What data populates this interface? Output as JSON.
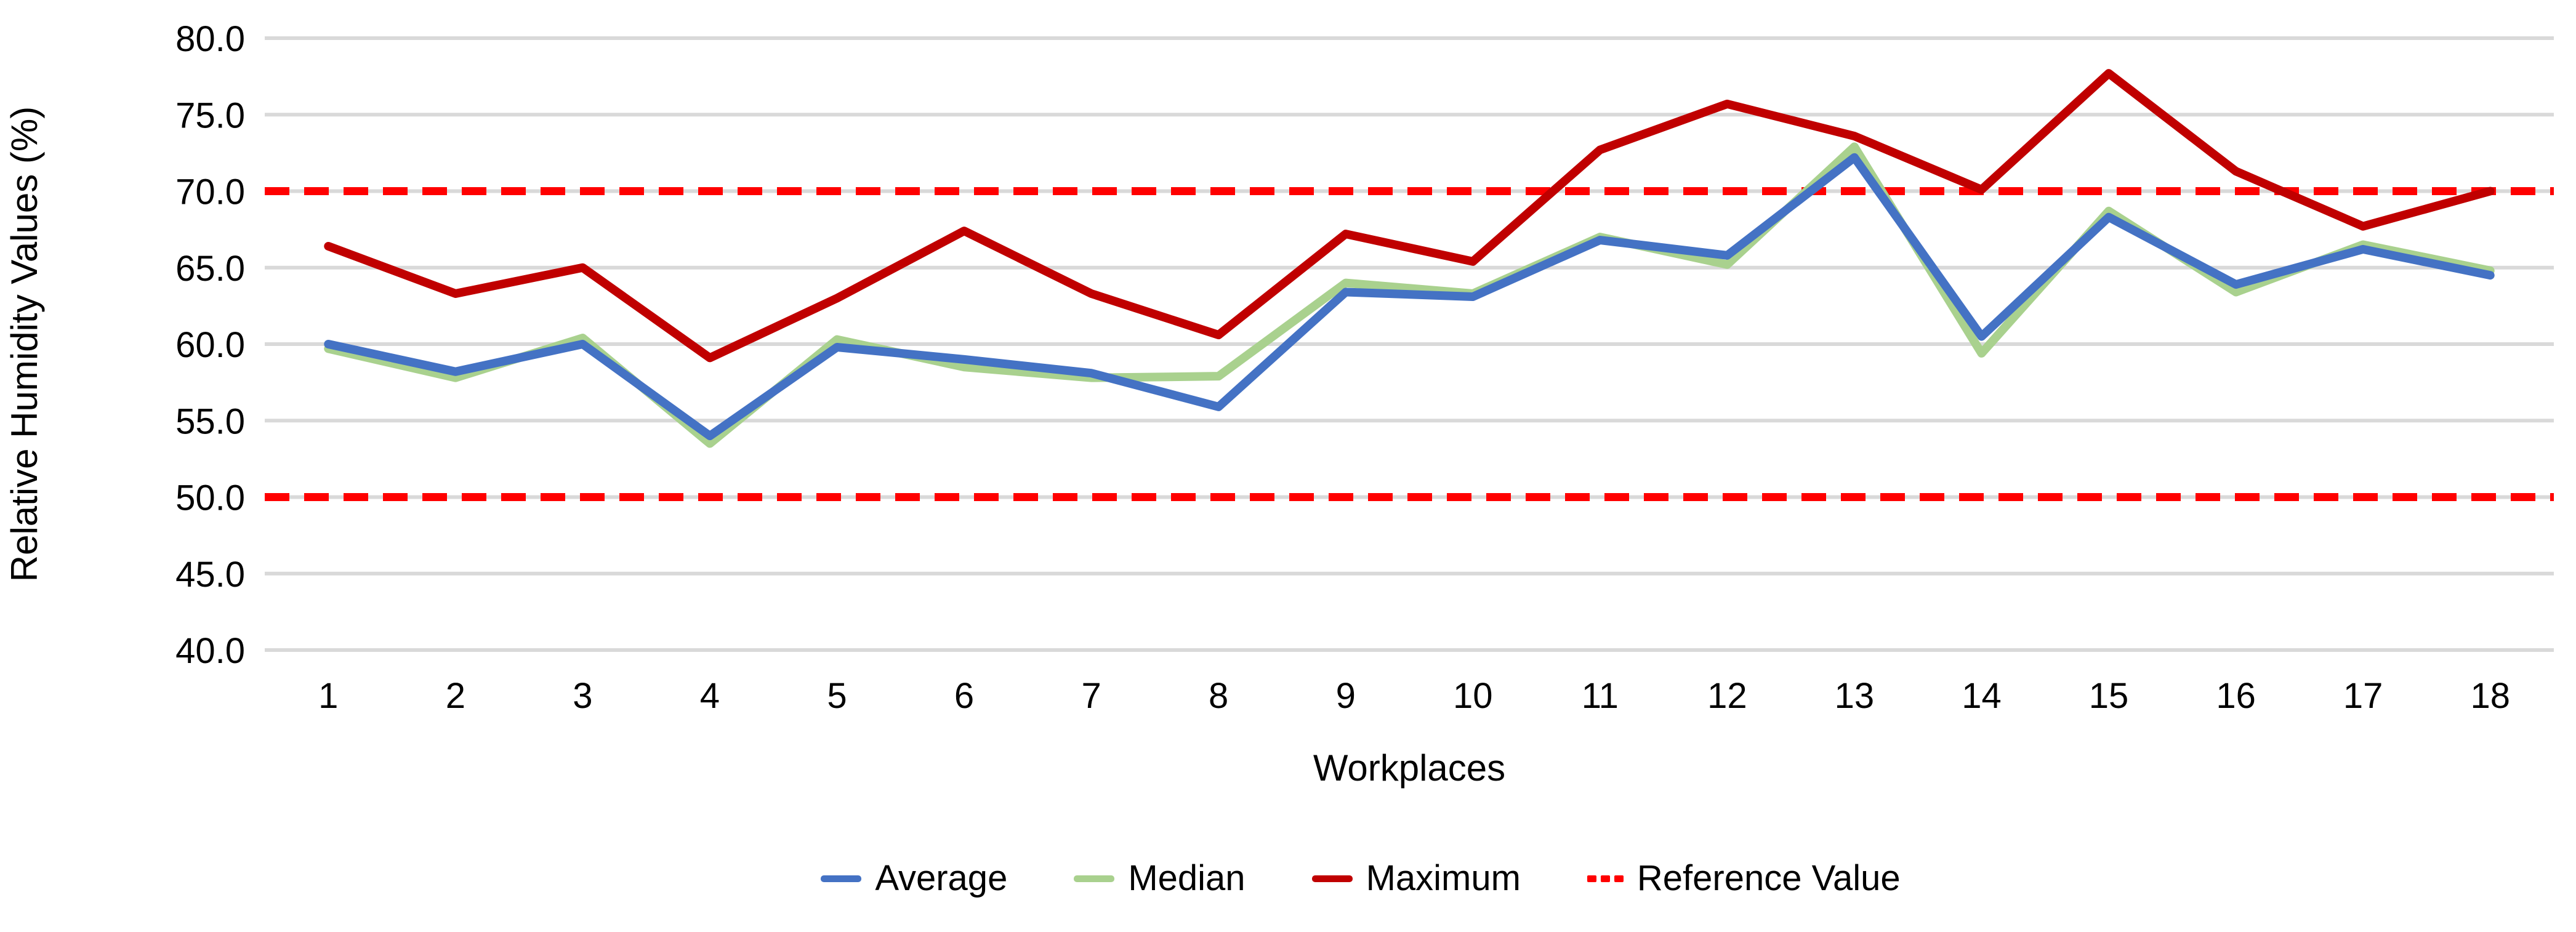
{
  "chart_data": {
    "type": "line",
    "title": "",
    "xlabel": "Workplaces",
    "ylabel": "Relative Humidity Values (%)",
    "ylim": [
      40.0,
      80.0
    ],
    "ytick_step": 5.0,
    "ytick_decimals": 1,
    "grid": {
      "visible": true,
      "color": "#d9d9d9"
    },
    "background": "#ffffff",
    "text_color": "#000000",
    "legend_position": "bottom",
    "categories": [
      "1",
      "2",
      "3",
      "4",
      "5",
      "6",
      "7",
      "8",
      "9",
      "10",
      "11",
      "12",
      "13",
      "14",
      "15",
      "16",
      "17",
      "18"
    ],
    "series": [
      {
        "name": "Average",
        "color": "#4472c4",
        "values": [
          60.0,
          58.2,
          60.0,
          54.0,
          59.8,
          59.0,
          58.1,
          55.9,
          63.4,
          63.1,
          66.8,
          65.8,
          72.2,
          60.5,
          68.3,
          63.9,
          66.2,
          64.5
        ]
      },
      {
        "name": "Median",
        "color": "#a9d18e",
        "values": [
          59.7,
          57.8,
          60.4,
          53.5,
          60.3,
          58.5,
          57.8,
          57.9,
          64.0,
          63.3,
          67.0,
          65.2,
          72.9,
          59.4,
          68.7,
          63.4,
          66.5,
          64.8
        ]
      },
      {
        "name": "Maximum",
        "color": "#c00000",
        "values": [
          66.4,
          63.3,
          65.0,
          59.1,
          63.0,
          67.4,
          63.3,
          60.6,
          67.2,
          65.4,
          72.7,
          75.7,
          73.6,
          70.1,
          77.7,
          71.3,
          67.7,
          70.0
        ]
      }
    ],
    "reference": {
      "name": "Reference Value",
      "color": "#ff0000",
      "style": "dashed",
      "values": [
        70.0,
        50.0
      ]
    }
  }
}
